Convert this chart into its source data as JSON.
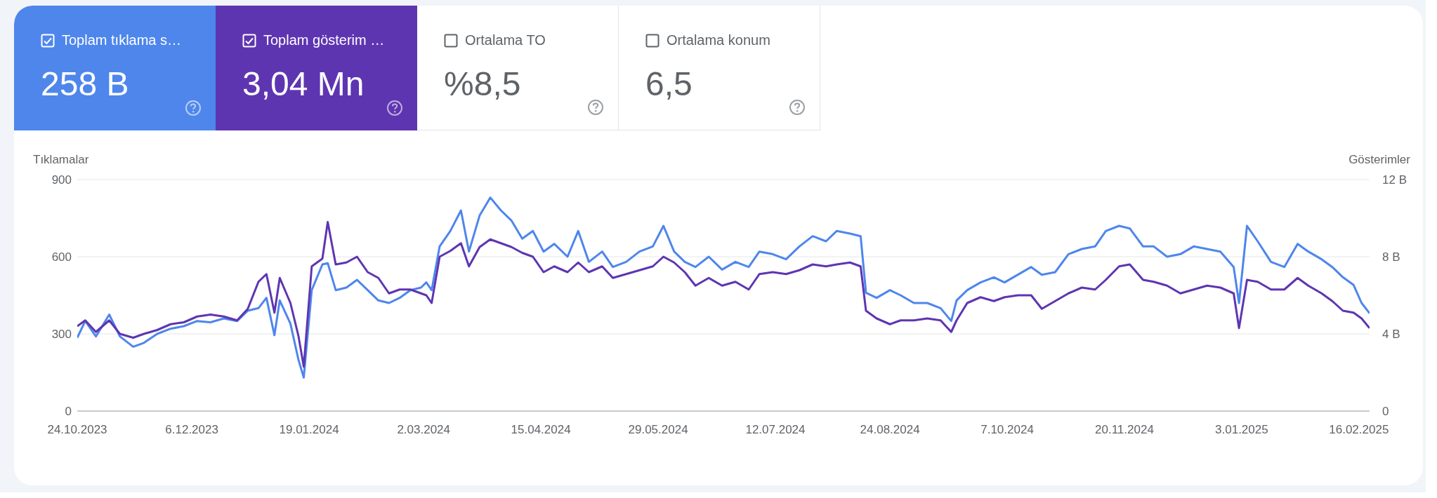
{
  "chart_data": [
    {
      "type": "other",
      "annotations": [
        "Toplam tıklama s…",
        "258 B",
        "Toplam gösterim …",
        "3,04 Mn",
        "Ortalama TO",
        "%8,5",
        "Ortalama konum",
        "6,5"
      ]
    },
    {
      "type": "line",
      "ylabel": "Tıklamalar",
      "y2label": "Gösterimler",
      "grid": "y",
      "legend": false,
      "marker": "none",
      "line_style": "solid",
      "x": [
        "2023-10-24",
        "2023-10-27",
        "2023-10-31",
        "2023-11-05",
        "2023-11-09",
        "2023-11-14",
        "2023-11-18",
        "2023-11-23",
        "2023-11-28",
        "2023-12-03",
        "2023-12-08",
        "2023-12-13",
        "2023-12-18",
        "2023-12-23",
        "2023-12-27",
        "2023-12-31",
        "2024-01-03",
        "2024-01-06",
        "2024-01-08",
        "2024-01-12",
        "2024-01-15",
        "2024-01-17",
        "2024-01-20",
        "2024-01-24",
        "2024-01-26",
        "2024-01-29",
        "2024-02-02",
        "2024-02-06",
        "2024-02-10",
        "2024-02-14",
        "2024-02-18",
        "2024-02-22",
        "2024-02-26",
        "2024-03-01",
        "2024-03-03",
        "2024-03-05",
        "2024-03-08",
        "2024-03-12",
        "2024-03-16",
        "2024-03-19",
        "2024-03-23",
        "2024-03-27",
        "2024-03-31",
        "2024-04-04",
        "2024-04-08",
        "2024-04-12",
        "2024-04-16",
        "2024-04-20",
        "2024-04-25",
        "2024-04-29",
        "2024-05-03",
        "2024-05-08",
        "2024-05-12",
        "2024-05-17",
        "2024-05-22",
        "2024-05-27",
        "2024-05-31",
        "2024-06-04",
        "2024-06-08",
        "2024-06-12",
        "2024-06-17",
        "2024-06-22",
        "2024-06-27",
        "2024-07-02",
        "2024-07-06",
        "2024-07-11",
        "2024-07-16",
        "2024-07-21",
        "2024-07-26",
        "2024-07-31",
        "2024-08-04",
        "2024-08-09",
        "2024-08-13",
        "2024-08-15",
        "2024-08-19",
        "2024-08-24",
        "2024-08-28",
        "2024-09-02",
        "2024-09-07",
        "2024-09-12",
        "2024-09-16",
        "2024-09-18",
        "2024-09-22",
        "2024-09-27",
        "2024-10-02",
        "2024-10-06",
        "2024-10-11",
        "2024-10-16",
        "2024-10-20",
        "2024-10-25",
        "2024-10-30",
        "2024-11-04",
        "2024-11-09",
        "2024-11-13",
        "2024-11-18",
        "2024-11-22",
        "2024-11-27",
        "2024-12-01",
        "2024-12-06",
        "2024-12-11",
        "2024-12-16",
        "2024-12-21",
        "2024-12-26",
        "2024-12-31",
        "2025-01-02",
        "2025-01-05",
        "2025-01-09",
        "2025-01-14",
        "2025-01-19",
        "2025-01-24",
        "2025-01-28",
        "2025-02-02",
        "2025-02-06",
        "2025-02-10",
        "2025-02-14",
        "2025-02-17",
        "2025-02-20"
      ],
      "series": [
        {
          "color": "#4e86ec",
          "values": [
            285,
            350,
            290,
            375,
            290,
            250,
            265,
            300,
            320,
            330,
            350,
            345,
            360,
            350,
            390,
            400,
            440,
            295,
            430,
            340,
            200,
            130,
            470,
            570,
            575,
            470,
            480,
            510,
            470,
            430,
            420,
            440,
            470,
            480,
            500,
            470,
            640,
            700,
            780,
            620,
            760,
            830,
            780,
            740,
            670,
            700,
            620,
            650,
            600,
            700,
            580,
            620,
            560,
            580,
            620,
            640,
            720,
            620,
            580,
            560,
            600,
            550,
            580,
            560,
            620,
            610,
            590,
            640,
            680,
            660,
            700,
            690,
            680,
            460,
            440,
            470,
            450,
            420,
            420,
            400,
            350,
            430,
            470,
            500,
            520,
            500,
            530,
            560,
            530,
            540,
            610,
            630,
            640,
            700,
            720,
            710,
            640,
            640,
            600,
            610,
            640,
            630,
            620,
            560,
            420,
            720,
            660,
            580,
            560,
            650,
            620,
            590,
            560,
            520,
            490,
            420,
            380
          ]
        },
        {
          "color": "#5e35b1",
          "axis": "y2",
          "values": [
            4.4,
            4.7,
            4.1,
            4.7,
            4.0,
            3.8,
            4.0,
            4.2,
            4.5,
            4.6,
            4.9,
            5.0,
            4.9,
            4.7,
            5.3,
            6.7,
            7.1,
            5.1,
            6.9,
            5.6,
            3.9,
            2.3,
            7.5,
            7.9,
            9.8,
            7.6,
            7.7,
            8.0,
            7.2,
            6.9,
            6.1,
            6.3,
            6.3,
            6.1,
            6.0,
            5.6,
            8.0,
            8.3,
            8.7,
            7.5,
            8.5,
            8.9,
            8.7,
            8.5,
            8.2,
            8.0,
            7.2,
            7.5,
            7.2,
            7.7,
            7.2,
            7.5,
            6.9,
            7.1,
            7.3,
            7.5,
            8.0,
            7.7,
            7.2,
            6.5,
            6.9,
            6.5,
            6.7,
            6.3,
            7.1,
            7.2,
            7.1,
            7.3,
            7.6,
            7.5,
            7.6,
            7.7,
            7.5,
            5.2,
            4.8,
            4.5,
            4.7,
            4.7,
            4.8,
            4.7,
            4.1,
            4.7,
            5.6,
            5.9,
            5.7,
            5.9,
            6.0,
            6.0,
            5.3,
            5.7,
            6.1,
            6.4,
            6.3,
            6.8,
            7.5,
            7.6,
            6.8,
            6.7,
            6.5,
            6.1,
            6.3,
            6.5,
            6.4,
            6.1,
            4.3,
            6.8,
            6.7,
            6.3,
            6.3,
            6.9,
            6.5,
            6.1,
            5.7,
            5.2,
            5.1,
            4.8,
            4.3
          ]
        }
      ],
      "xlim": [
        "2023-10-24",
        "2025-02-20"
      ],
      "xticks": [
        {
          "value": "2023-10-24",
          "label": "24.10.2023"
        },
        {
          "value": "2023-12-06",
          "label": "6.12.2023"
        },
        {
          "value": "2024-01-19",
          "label": "19.01.2024"
        },
        {
          "value": "2024-03-02",
          "label": "2.03.2024"
        },
        {
          "value": "2024-04-15",
          "label": "15.04.2024"
        },
        {
          "value": "2024-05-29",
          "label": "29.05.2024"
        },
        {
          "value": "2024-07-12",
          "label": "12.07.2024"
        },
        {
          "value": "2024-08-24",
          "label": "24.08.2024"
        },
        {
          "value": "2024-10-07",
          "label": "7.10.2024"
        },
        {
          "value": "2024-11-20",
          "label": "20.11.2024"
        },
        {
          "value": "2025-01-03",
          "label": "3.01.2025"
        },
        {
          "value": "2025-02-16",
          "label": "16.02.2025"
        }
      ],
      "ylim": [
        0,
        900
      ],
      "yticks": [
        0,
        300,
        600,
        900
      ],
      "y2lim": [
        0,
        12
      ],
      "y2ticks": [
        0,
        {
          "value": 4,
          "label": "4 B"
        },
        {
          "value": 8,
          "label": "8 B"
        },
        {
          "value": 12,
          "label": "12 B"
        }
      ]
    }
  ]
}
